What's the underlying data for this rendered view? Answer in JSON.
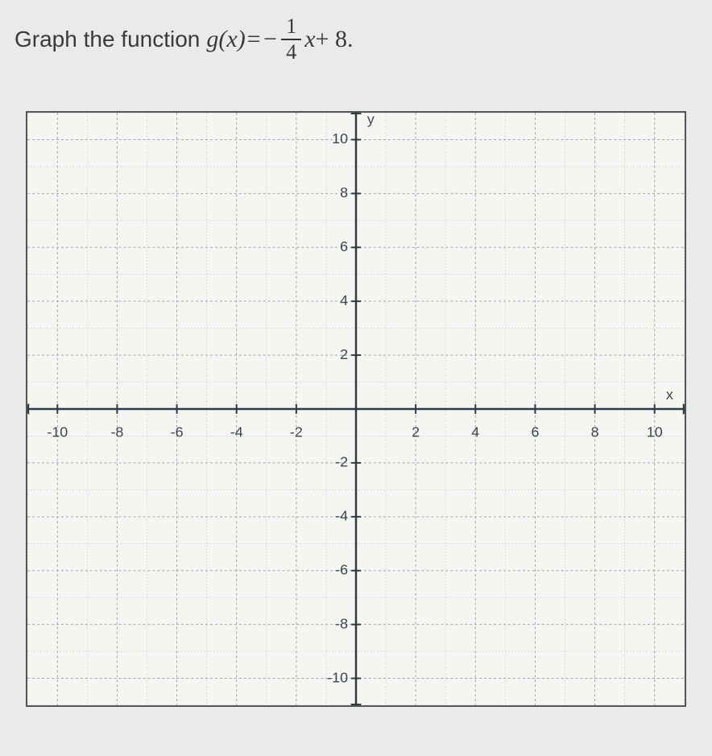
{
  "prompt": {
    "lead": "Graph the function ",
    "func_name": "g",
    "arg": "x",
    "equals": " = ",
    "neg": "−",
    "frac_num": "1",
    "frac_den": "4",
    "tail_var": "x",
    "tail_plus": " + 8."
  },
  "chart": {
    "type": "cartesian-grid",
    "xlim": [
      -11,
      11
    ],
    "ylim": [
      -11,
      11
    ],
    "major_step": 2,
    "minor_step": 1,
    "x_tick_labels": [
      "-10",
      "-8",
      "-6",
      "-4",
      "-2",
      "2",
      "4",
      "6",
      "8",
      "10"
    ],
    "x_tick_vals": [
      -10,
      -8,
      -6,
      -4,
      -2,
      2,
      4,
      6,
      8,
      10
    ],
    "y_tick_labels": [
      "10",
      "8",
      "6",
      "4",
      "2",
      "-2",
      "-4",
      "-6",
      "-8",
      "-10"
    ],
    "y_tick_vals": [
      10,
      8,
      6,
      4,
      2,
      -2,
      -4,
      -6,
      -8,
      -10
    ],
    "x_axis_label": "x",
    "y_axis_label": "y",
    "colors": {
      "background": "#f5f6f2",
      "minor_grid": "#c9d0d6",
      "major_grid": "#9aa6b0",
      "axis": "#2f3a44",
      "text": "#3b4650",
      "page_bg": "#e8ebe8"
    },
    "axis_width": 2.5,
    "tick_length": 6,
    "label_fontsize": 18
  }
}
